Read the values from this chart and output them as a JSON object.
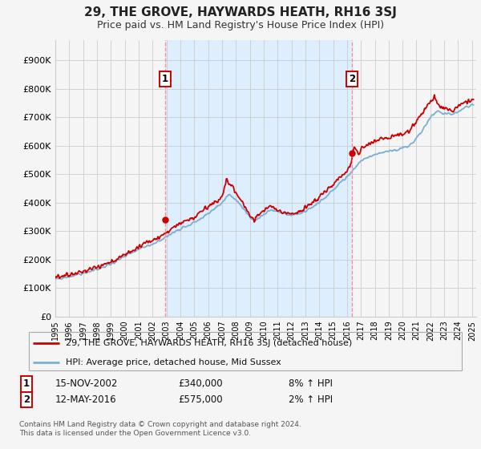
{
  "title": "29, THE GROVE, HAYWARDS HEATH, RH16 3SJ",
  "subtitle": "Price paid vs. HM Land Registry's House Price Index (HPI)",
  "ytick_values": [
    0,
    100000,
    200000,
    300000,
    400000,
    500000,
    600000,
    700000,
    800000,
    900000
  ],
  "ytick_labels": [
    "£0",
    "£100K",
    "£200K",
    "£300K",
    "£400K",
    "£500K",
    "£600K",
    "£700K",
    "£800K",
    "£900K"
  ],
  "ylim": [
    0,
    970000
  ],
  "xmin": 1995.0,
  "xmax": 2025.3,
  "sale1_date": 2002.88,
  "sale1_price": 340000,
  "sale1_label": "1",
  "sale2_date": 2016.37,
  "sale2_price": 575000,
  "sale2_label": "2",
  "hpi_color": "#7ab0d4",
  "price_color": "#cc0000",
  "shade_color": "#ddeeff",
  "dashed_color": "#ff8888",
  "background_color": "#f5f5f5",
  "grid_color": "#cccccc",
  "legend_label_price": "29, THE GROVE, HAYWARDS HEATH, RH16 3SJ (detached house)",
  "legend_label_hpi": "HPI: Average price, detached house, Mid Sussex",
  "note1_num": "1",
  "note1_date": "15-NOV-2002",
  "note1_price": "£340,000",
  "note1_hpi": "8% ↑ HPI",
  "note2_num": "2",
  "note2_date": "12-MAY-2016",
  "note2_price": "£575,000",
  "note2_hpi": "2% ↑ HPI",
  "footer": "Contains HM Land Registry data © Crown copyright and database right 2024.\nThis data is licensed under the Open Government Licence v3.0."
}
